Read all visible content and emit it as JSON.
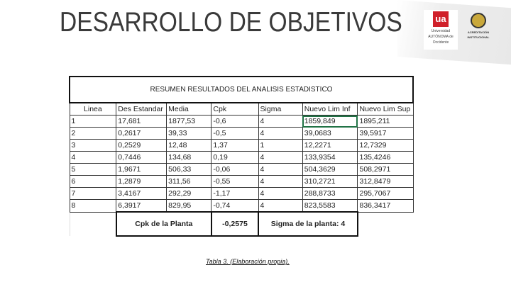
{
  "slide": {
    "title": "DESARROLLO DE OBJETIVOS",
    "caption": "Tabla 3. (Elaboración propia)."
  },
  "logos": {
    "university": "Universidad AUTÓNOMA de Occidente",
    "accreditation": "ACREDITACIÓN INSTITUCIONAL"
  },
  "table": {
    "title": "RESUMEN RESULTADOS DEL ANALISIS ESTADISTICO",
    "headers": [
      "Linea",
      "Des Estandar",
      "Media",
      "Cpk",
      "Sigma",
      "Nuevo Lim Inf",
      "Nuevo Lim Sup"
    ],
    "rows": [
      [
        "1",
        "17,681",
        "1877,53",
        "-0,6",
        "4",
        "1859,849",
        "1895,211"
      ],
      [
        "2",
        "0,2617",
        "39,33",
        "-0,5",
        "4",
        "39,0683",
        "39,5917"
      ],
      [
        "3",
        "0,2529",
        "12,48",
        "1,37",
        "1",
        "12,2271",
        "12,7329"
      ],
      [
        "4",
        "0,7446",
        "134,68",
        "0,19",
        "4",
        "133,9354",
        "135,4246"
      ],
      [
        "5",
        "1,9671",
        "506,33",
        "-0,06",
        "4",
        "504,3629",
        "508,2971"
      ],
      [
        "6",
        "1,2879",
        "311,56",
        "-0,55",
        "4",
        "310,2721",
        "312,8479"
      ],
      [
        "7",
        "3,4167",
        "292,29",
        "-1,17",
        "4",
        "288,8733",
        "295,7067"
      ],
      [
        "8",
        "6,3917",
        "829,95",
        "-0,74",
        "4",
        "823,5583",
        "836,3417"
      ]
    ],
    "footer": {
      "cpk_label": "Cpk de la Planta",
      "cpk_value": "-0,2575",
      "sigma": "Sigma de la planta: 4"
    }
  }
}
